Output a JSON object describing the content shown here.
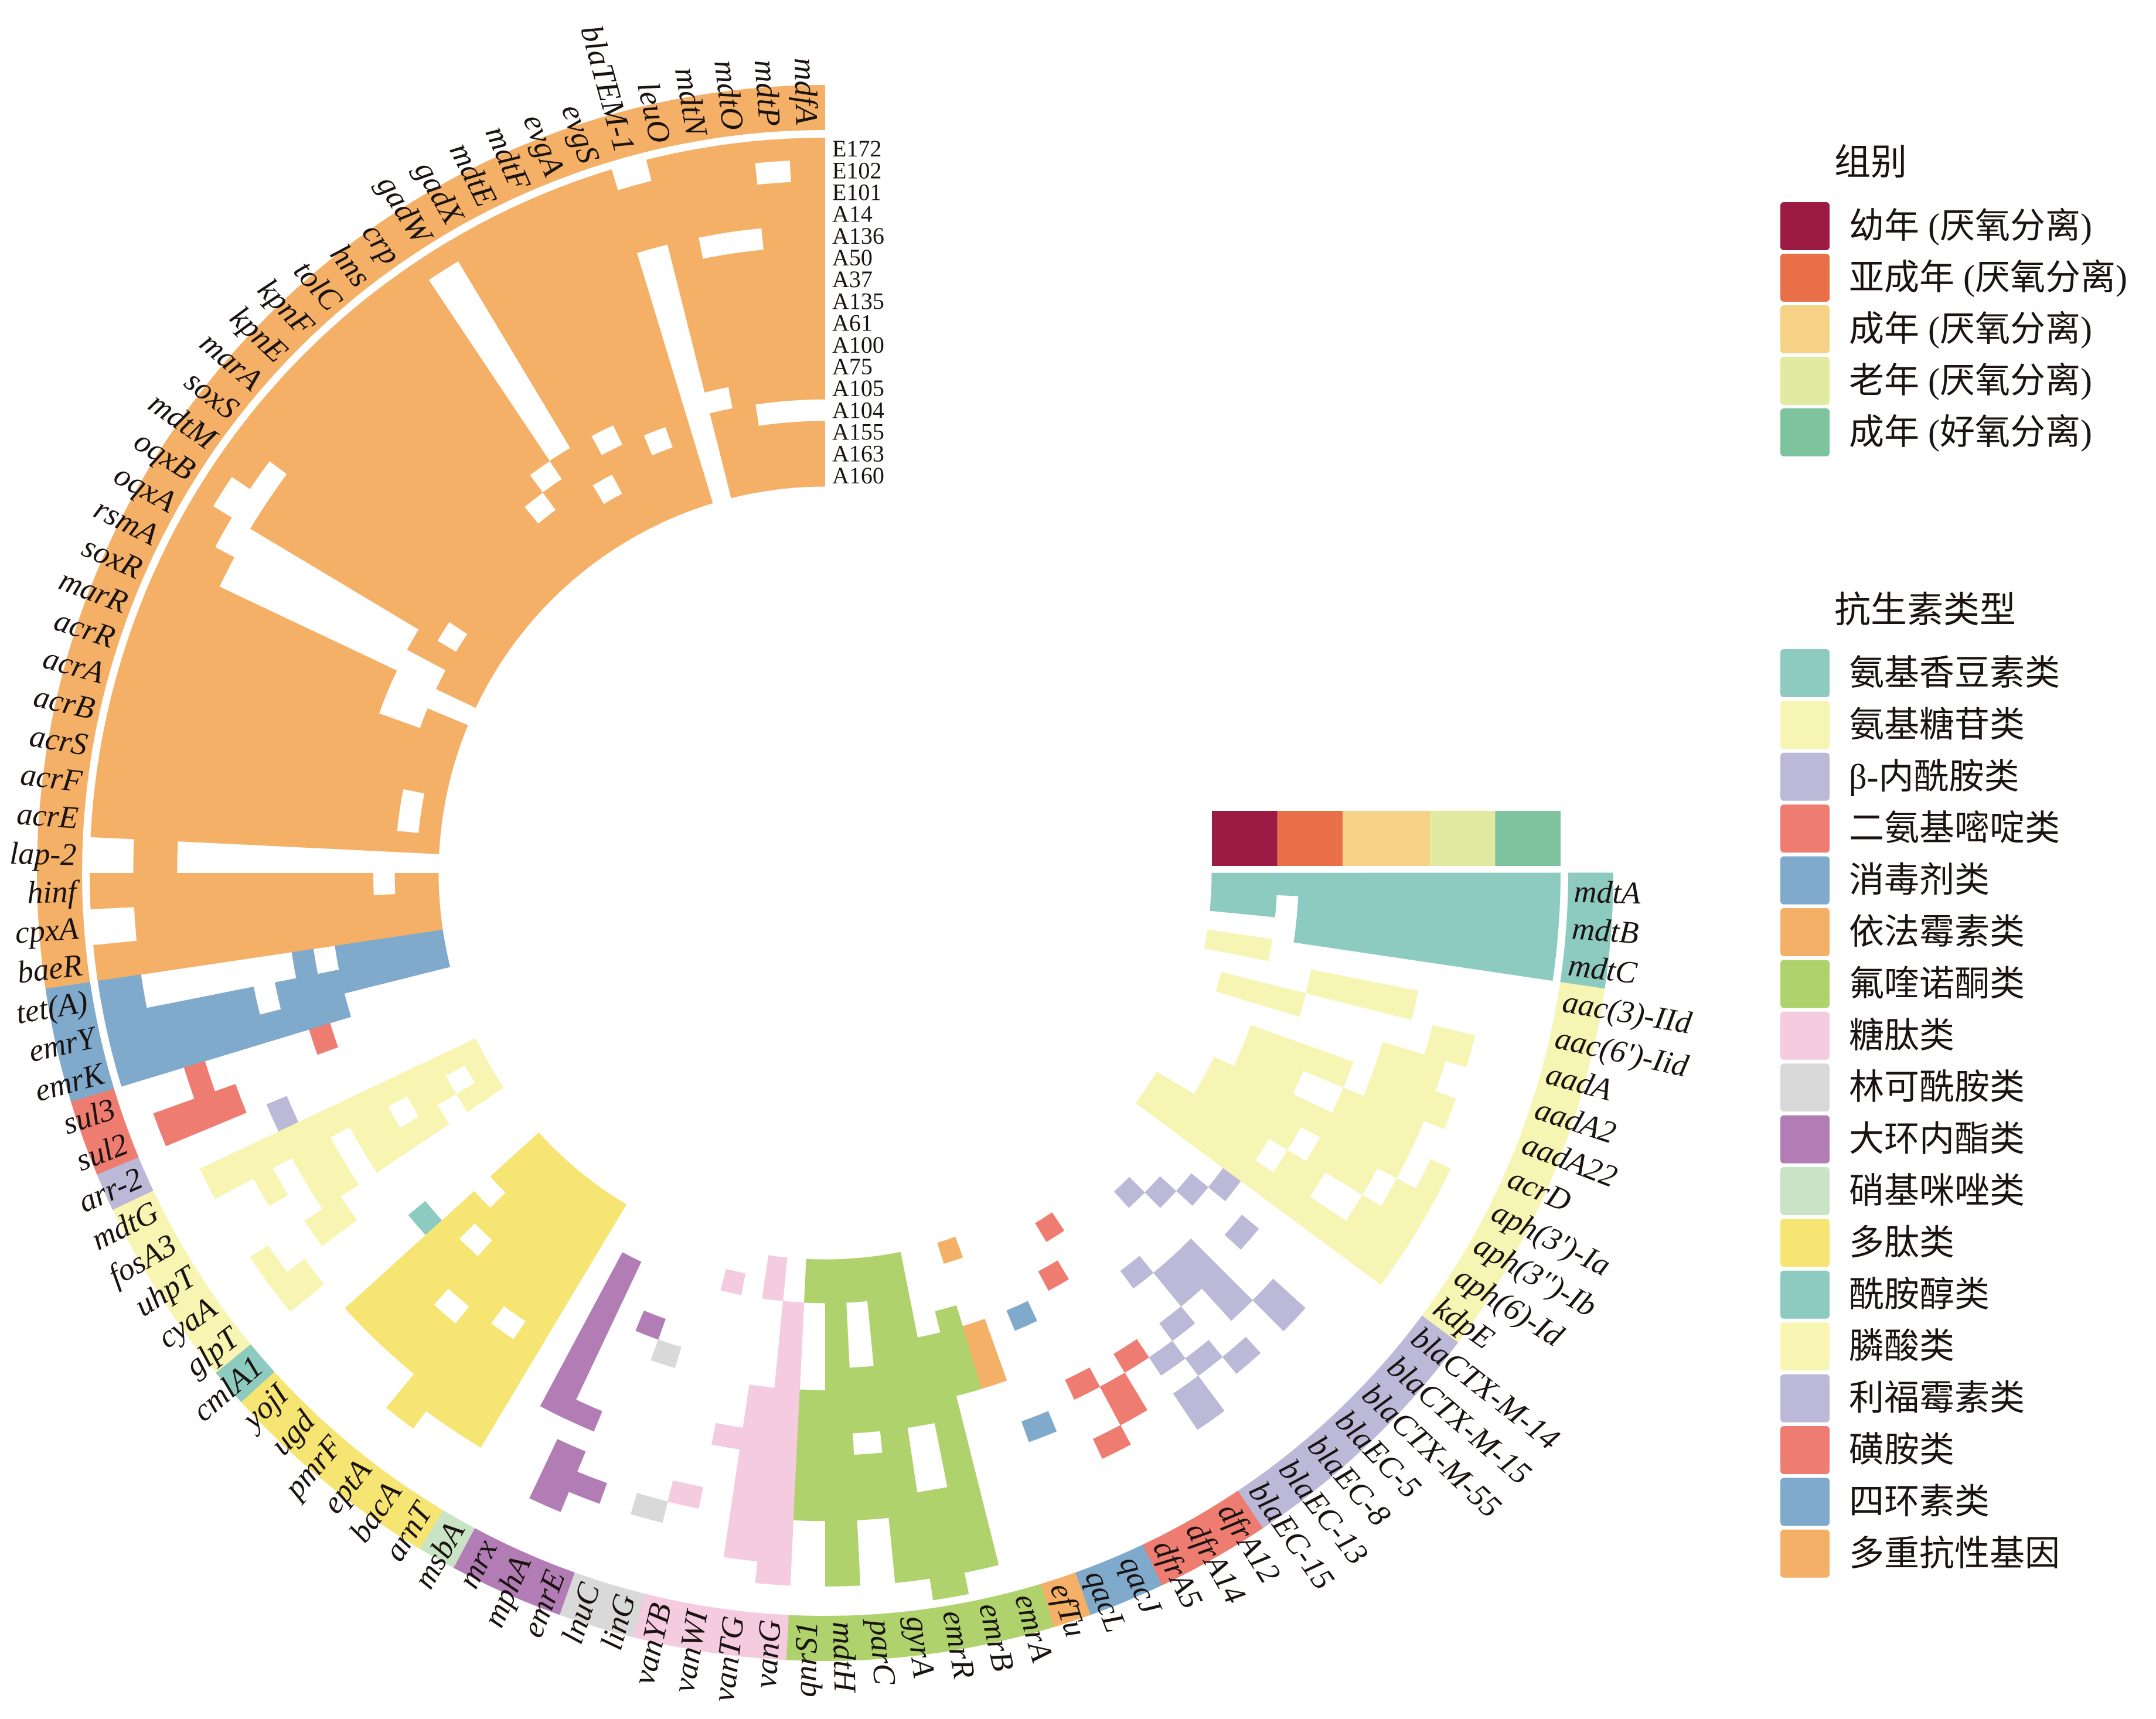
{
  "chart_data": {
    "type": "heatmap",
    "layout": "circular",
    "samples": [
      "E172",
      "E102",
      "E101",
      "A14",
      "A136",
      "A50",
      "A37",
      "A135",
      "A61",
      "A100",
      "A75",
      "A105",
      "A104",
      "A155",
      "A163",
      "A160"
    ],
    "groups": [
      {
        "label": "幼年 (厌氧分离)",
        "color": "#9b1b45",
        "samples": [
          "A155",
          "A163",
          "A160"
        ]
      },
      {
        "label": "亚成年 (厌氧分离)",
        "color": "#e86f48",
        "samples": [
          "A75",
          "A105",
          "A104"
        ]
      },
      {
        "label": "成年 (厌氧分离)",
        "color": "#f5d285",
        "samples": [
          "A37",
          "A135",
          "A61",
          "A100"
        ]
      },
      {
        "label": "老年 (厌氧分离)",
        "color": "#e2e9a0",
        "samples": [
          "A14",
          "A136",
          "A50"
        ]
      },
      {
        "label": "成年 (好氧分离)",
        "color": "#7dc49e",
        "samples": [
          "E172",
          "E102",
          "E101"
        ]
      }
    ],
    "group_legend_title": "组别",
    "class_legend_title": "抗生素类型",
    "classes": [
      {
        "label": "氨基香豆素类",
        "color": "#8dcbc0"
      },
      {
        "label": "氨基糖苷类",
        "color": "#f7f5b3"
      },
      {
        "label": "β-内酰胺类",
        "color": "#bcb8d8"
      },
      {
        "label": "二氨基嘧啶类",
        "color": "#ef7c70"
      },
      {
        "label": "消毒剂类",
        "color": "#80aacb"
      },
      {
        "label": "依法霉素类",
        "color": "#f4b066"
      },
      {
        "label": "氟喹诺酮类",
        "color": "#afd26c"
      },
      {
        "label": "糖肽类",
        "color": "#f5cbe0"
      },
      {
        "label": "林可酰胺类",
        "color": "#d9d9d9"
      },
      {
        "label": "大环内酯类",
        "color": "#b27db4"
      },
      {
        "label": "硝基咪唑类",
        "color": "#c9e4c4"
      },
      {
        "label": "多肽类",
        "color": "#f6e573"
      },
      {
        "label": "酰胺醇类",
        "color": "#8dcbc0"
      },
      {
        "label": "膦酸类",
        "color": "#f8f5b3"
      },
      {
        "label": "利福霉素类",
        "color": "#bcb8d8"
      },
      {
        "label": "磺胺类",
        "color": "#ef7c70"
      },
      {
        "label": "四环素类",
        "color": "#80aacb"
      },
      {
        "label": "多重抗性基因",
        "color": "#f4b066"
      }
    ],
    "genes": [
      {
        "name": "mdfA",
        "class": "多重抗性基因",
        "presence": "1111111111110111"
      },
      {
        "name": "mdtP",
        "class": "多重抗性基因",
        "presence": "1011111111110111"
      },
      {
        "name": "mdtO",
        "class": "多重抗性基因",
        "presence": "1111011111110111"
      },
      {
        "name": "mdtN",
        "class": "多重抗性基因",
        "presence": "1111011111111111"
      },
      {
        "name": "leuO",
        "class": "多重抗性基因",
        "presence": "1111111111101111"
      },
      {
        "name": "blaTEM-1",
        "class": "多重抗性基因",
        "presence": "0111000000000000"
      },
      {
        "name": "evgS",
        "class": "多重抗性基因",
        "presence": "1111111111111111"
      },
      {
        "name": "evgA",
        "class": "多重抗性基因",
        "presence": "1111111111110111"
      },
      {
        "name": "mdtF",
        "class": "多重抗性基因",
        "presence": "1111111111111111"
      },
      {
        "name": "mdtE",
        "class": "多重抗性基因",
        "presence": "1111111111101111"
      },
      {
        "name": "gadX",
        "class": "多重抗性基因",
        "presence": "1111111111111011"
      },
      {
        "name": "gadW",
        "class": "多重抗性基因",
        "presence": "1000000000011111"
      },
      {
        "name": "crp",
        "class": "多重抗性基因",
        "presence": "1111111111101111"
      },
      {
        "name": "hns",
        "class": "多重抗性基因",
        "presence": "1111111111110111"
      },
      {
        "name": "tolC",
        "class": "多重抗性基因",
        "presence": "1111111111111111"
      },
      {
        "name": "kpnF",
        "class": "多重抗性基因",
        "presence": "1111111111111111"
      },
      {
        "name": "kpnE",
        "class": "多重抗性基因",
        "presence": "1111111111111111"
      },
      {
        "name": "marA",
        "class": "多重抗性基因",
        "presence": "1111111111111111"
      },
      {
        "name": "soxS",
        "class": "多重抗性基因",
        "presence": "1111111111111111"
      },
      {
        "name": "mdtM",
        "class": "多重抗性基因",
        "presence": "1101111111111111"
      },
      {
        "name": "oqxB",
        "class": "多重抗性基因",
        "presence": "1001111111111011"
      },
      {
        "name": "oqxA",
        "class": "多重抗性基因",
        "presence": "1100000000001111"
      },
      {
        "name": "rsmA",
        "class": "多重抗性基因",
        "presence": "1110000000000011"
      },
      {
        "name": "soxR",
        "class": "多重抗性基因",
        "presence": "1111111111110000"
      },
      {
        "name": "marR",
        "class": "多重抗性基因",
        "presence": "1111111111110011"
      },
      {
        "name": "acrR",
        "class": "多重抗性基因",
        "presence": "1111111111111111"
      },
      {
        "name": "acrA",
        "class": "多重抗性基因",
        "presence": "1111111111111111"
      },
      {
        "name": "acrB",
        "class": "多重抗性基因",
        "presence": "1111111111111111"
      },
      {
        "name": "acrS",
        "class": "多重抗性基因",
        "presence": "1111111111111101"
      },
      {
        "name": "acrF",
        "class": "多重抗性基因",
        "presence": "1111111111111101"
      },
      {
        "name": "acrE",
        "class": "多重抗性基因",
        "presence": "1111111111111111"
      },
      {
        "name": "lap-2",
        "class": "多重抗性基因",
        "presence": "0011000000000000"
      },
      {
        "name": "hinf",
        "class": "多重抗性基因",
        "presence": "1111111111111011"
      },
      {
        "name": "cpxA",
        "class": "多重抗性基因",
        "presence": "0011111111111111"
      },
      {
        "name": "baeR",
        "class": "多重抗性基因",
        "presence": "1111111111111111"
      },
      {
        "name": "tet(A)",
        "class": "四环素类",
        "presence": "1100000001011111"
      },
      {
        "name": "emrY",
        "class": "四环素类",
        "presence": "1111111011111111"
      },
      {
        "name": "emrK",
        "class": "四环素类",
        "presence": "1111111111100000"
      },
      {
        "name": "sul3",
        "class": "磺胺类",
        "presence": "0001000001000000"
      },
      {
        "name": "sul2",
        "class": "磺胺类",
        "presence": "0111100000000000"
      },
      {
        "name": "arr-2",
        "class": "利福霉素类",
        "presence": "0000001000000000"
      },
      {
        "name": "mdtG",
        "class": "膦酸类",
        "presence": "0011111111111111"
      },
      {
        "name": "fosA3",
        "class": "膦酸类",
        "presence": "0000101101101101"
      },
      {
        "name": "uhpT",
        "class": "膦酸类",
        "presence": "0000001101111011"
      },
      {
        "name": "cyaA",
        "class": "膦酸类",
        "presence": "0010011000000000"
      },
      {
        "name": "glpT",
        "class": "膦酸类",
        "presence": "0011000000000000"
      },
      {
        "name": "cmlA1",
        "class": "酰胺醇类",
        "presence": "0000000001000000"
      },
      {
        "name": "yojI",
        "class": "多肽类",
        "presence": "0000111111110111"
      },
      {
        "name": "ugd",
        "class": "多肽类",
        "presence": "0000111111011111"
      },
      {
        "name": "pmrF",
        "class": "多肽类",
        "presence": "0000111011111111"
      },
      {
        "name": "eptA",
        "class": "多肽类",
        "presence": "0011111111111111"
      },
      {
        "name": "bacA",
        "class": "多肽类",
        "presence": "0001111101111111"
      },
      {
        "name": "arnT",
        "class": "多肽类",
        "presence": "0001111111111111"
      },
      {
        "name": "msbA",
        "class": "硝基咪唑类",
        "presence": "0000000000000000"
      },
      {
        "name": "mrx",
        "class": "大环内酯类",
        "presence": "0000001111111100"
      },
      {
        "name": "mphA",
        "class": "大环内酯类",
        "presence": "0011101000000000"
      },
      {
        "name": "emrE",
        "class": "大环内酯类",
        "presence": "0001000000010000"
      },
      {
        "name": "lnuC",
        "class": "林可酰胺类",
        "presence": "0000000000100000"
      },
      {
        "name": "linG",
        "class": "林可酰胺类",
        "presence": "0001000000000000"
      },
      {
        "name": "vanYB",
        "class": "糖肽类",
        "presence": "0000100000000010"
      },
      {
        "name": "vanWI",
        "class": "糖肽类",
        "presence": "0000000100000000"
      },
      {
        "name": "vanTG",
        "class": "糖肽类",
        "presence": "0011111111000011"
      },
      {
        "name": "vanG",
        "class": "糖肽类",
        "presence": "0111111111111100"
      },
      {
        "name": "qnrS1",
        "class": "氟喹诺酮类",
        "presence": "0000111111000011"
      },
      {
        "name": "mdtH",
        "class": "氟喹诺酮类",
        "presence": "0111111111111111"
      },
      {
        "name": "parC",
        "class": "氟喹诺酮类",
        "presence": "0000111011100011"
      },
      {
        "name": "gyrA",
        "class": "氟喹诺酮类",
        "presence": "0111111111111111"
      },
      {
        "name": "emrR",
        "class": "氟喹诺酮类",
        "presence": "1111100011111111"
      },
      {
        "name": "emrB",
        "class": "氟喹诺酮类",
        "presence": "0111111111110000"
      },
      {
        "name": "emrA",
        "class": "氟喹诺酮类",
        "presence": "0000000001111000"
      },
      {
        "name": "efTu",
        "class": "依法霉素类",
        "presence": "0000000001110001"
      },
      {
        "name": "qacL",
        "class": "消毒剂类",
        "presence": "0000001000000000"
      },
      {
        "name": "qacJ",
        "class": "消毒剂类",
        "presence": "0000000000010000"
      },
      {
        "name": "dfrA5",
        "class": "二氨基嘧啶类",
        "presence": "0000100100000000"
      },
      {
        "name": "dfrA14",
        "class": "二氨基嘧啶类",
        "presence": "0000011000001000"
      },
      {
        "name": "dfrA12",
        "class": "二氨基嘧啶类",
        "presence": "0000000100000010"
      },
      {
        "name": "blaEC-15",
        "class": "β-内酰胺类",
        "presence": "0001101000000000"
      },
      {
        "name": "blaEC-13",
        "class": "β-内酰胺类",
        "presence": "0000010100100000"
      },
      {
        "name": "blaEC-8",
        "class": "β-内酰胺类",
        "presence": "0000100011000000"
      },
      {
        "name": "blaEC-5",
        "class": "β-内酰胺类",
        "presence": "0000001111000100"
      },
      {
        "name": "blaCTX-M-55",
        "class": "β-内酰胺类",
        "presence": "0000110000001000"
      },
      {
        "name": "blaCTX-M-15",
        "class": "β-内酰胺类",
        "presence": "0000000010010000"
      },
      {
        "name": "blaCTX-M-14",
        "class": "β-内酰胺类",
        "presence": "0000000000100000"
      },
      {
        "name": "kdpE",
        "class": "氨基糖苷类",
        "presence": "0011111111111111"
      },
      {
        "name": "aph(6)-Id",
        "class": "氨基糖苷类",
        "presence": "0011100110111111"
      },
      {
        "name": "aph(3'')-Ib",
        "class": "氨基糖苷类",
        "presence": "0011011101111100"
      },
      {
        "name": "aph(3')-Ia",
        "class": "氨基糖苷类",
        "presence": "0010111111111100"
      },
      {
        "name": "acrD",
        "class": "氨基糖苷类",
        "presence": "0000111100111000"
      },
      {
        "name": "aadA22",
        "class": "氨基糖苷类",
        "presence": "0001111011111000"
      },
      {
        "name": "aadA2",
        "class": "氨基糖苷类",
        "presence": "0000111000000000"
      },
      {
        "name": "aadA",
        "class": "氨基糖苷类",
        "presence": "0001100000011110"
      },
      {
        "name": "aac(6')-Iid",
        "class": "氨基糖苷类",
        "presence": "0000001111100000"
      },
      {
        "name": "aac(3)-IId",
        "class": "氨基糖苷类",
        "presence": "0000000000000111"
      },
      {
        "name": "mdtC",
        "class": "氨基香豆素类",
        "presence": "1111111111110000"
      },
      {
        "name": "mdtB",
        "class": "氨基香豆素类",
        "presence": "1111111111110111"
      },
      {
        "name": "mdtA",
        "class": "氨基香豆素类",
        "presence": "1111111111111111"
      }
    ]
  }
}
